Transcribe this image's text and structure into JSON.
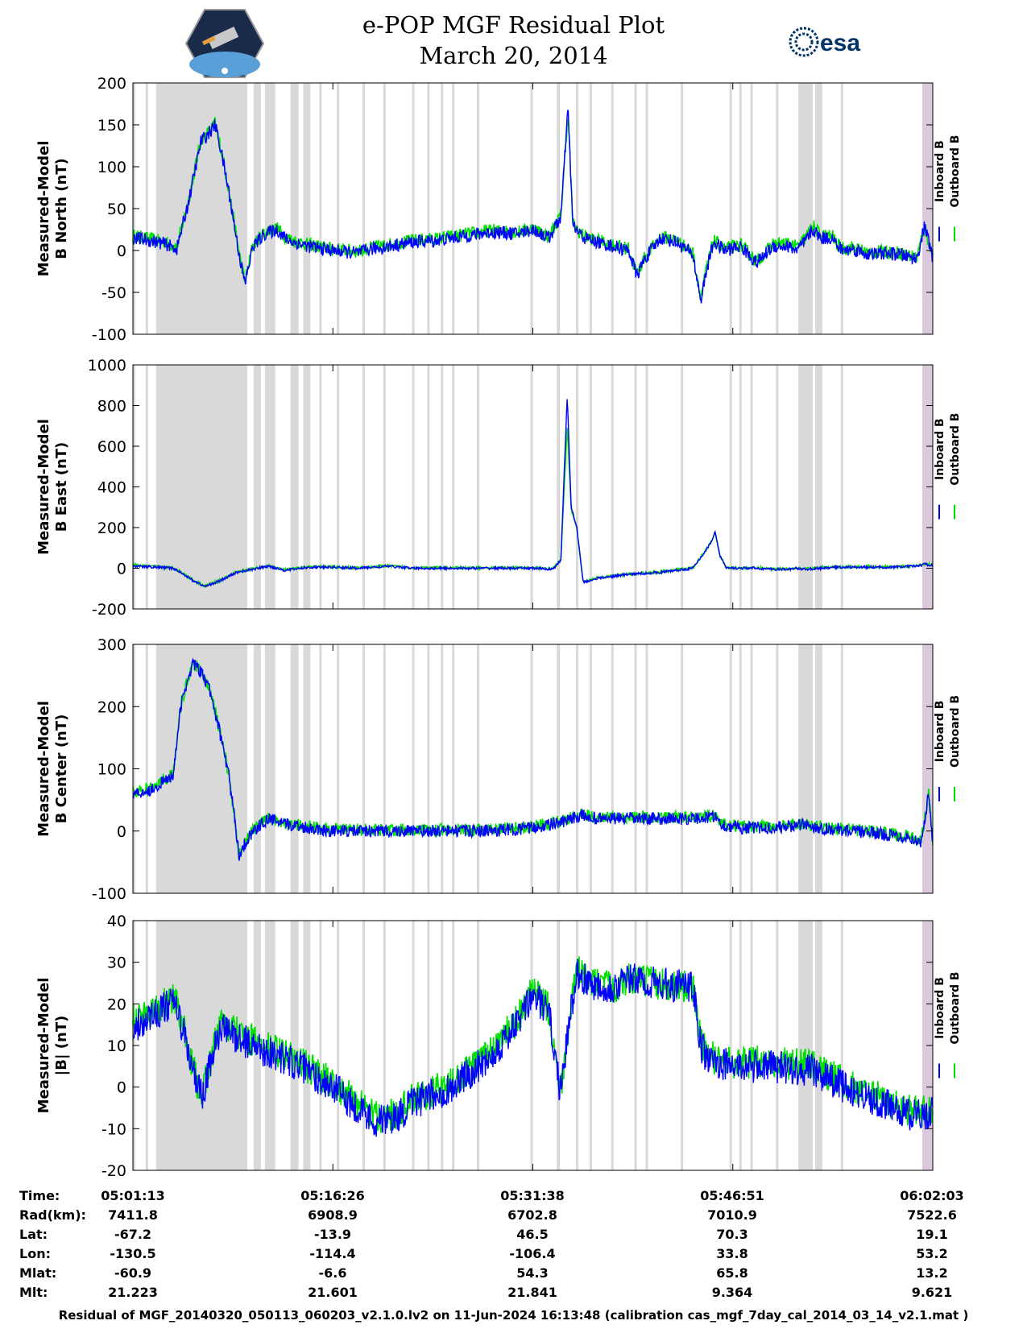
{
  "title": {
    "line1": "e-POP MGF Residual Plot",
    "line2": "March 20, 2014"
  },
  "logos": {
    "left": "Cassiope satellite mission patch",
    "right_text": "esa"
  },
  "colors": {
    "inboard": "#0000ff",
    "outboard": "#00e000",
    "gap_shade": "#d9d9d9",
    "end_shade": "#dcc8dc"
  },
  "chart_data": [
    {
      "type": "line",
      "ylabel_line1": "Measured-Model",
      "ylabel_line2": "B North (nT)",
      "ylim": [
        -100,
        200
      ],
      "yticks": [
        "200",
        "150",
        "100",
        "50",
        "0",
        "-50",
        "-100"
      ],
      "xlim": [
        0,
        100
      ],
      "legend": [
        "Inboard B",
        "Outboard B"
      ],
      "series": [
        {
          "name": "Inboard B",
          "x": [
            0,
            2,
            4,
            5.5,
            7,
            8.5,
            9.5,
            10.3,
            11,
            12,
            13.2,
            14,
            15,
            16.5,
            18,
            19,
            20,
            22,
            25,
            28,
            30,
            32,
            35,
            38,
            40,
            42,
            45,
            48,
            50,
            52,
            53.5,
            54.4,
            55,
            55.8,
            56.5,
            58,
            60,
            62,
            63,
            64,
            66,
            68,
            70,
            71,
            71.8,
            72.6,
            74,
            76,
            78,
            80,
            82,
            83,
            84,
            85,
            86,
            87.5,
            88,
            89,
            90,
            92,
            94,
            96,
            98,
            99,
            100
          ],
          "values": [
            15,
            12,
            8,
            2,
            60,
            130,
            140,
            150,
            120,
            70,
            0,
            -40,
            5,
            20,
            25,
            15,
            10,
            5,
            0,
            -3,
            2,
            5,
            10,
            12,
            15,
            18,
            22,
            20,
            25,
            15,
            40,
            170,
            30,
            20,
            15,
            10,
            5,
            0,
            -30,
            -10,
            15,
            10,
            -5,
            -60,
            -20,
            10,
            0,
            5,
            -15,
            5,
            5,
            0,
            10,
            25,
            15,
            15,
            5,
            0,
            2,
            -5,
            -3,
            -5,
            -10,
            30,
            -10
          ],
          "noise": 8
        },
        {
          "name": "Outboard B",
          "x": [
            0,
            2,
            4,
            5.5,
            7,
            8.5,
            9.5,
            10.3,
            11,
            12,
            13.2,
            14,
            15,
            16.5,
            18,
            19,
            20,
            22,
            25,
            28,
            30,
            32,
            35,
            38,
            40,
            42,
            45,
            48,
            50,
            52,
            53.5,
            54.4,
            55,
            55.8,
            56.5,
            58,
            60,
            62,
            63,
            64,
            66,
            68,
            70,
            71,
            71.8,
            72.6,
            74,
            76,
            78,
            80,
            82,
            83,
            84,
            85,
            86,
            87.5,
            88,
            89,
            90,
            92,
            94,
            96,
            98,
            99,
            100
          ],
          "values": [
            18,
            14,
            10,
            4,
            62,
            132,
            142,
            152,
            122,
            72,
            2,
            -38,
            7,
            22,
            27,
            17,
            12,
            7,
            2,
            -1,
            4,
            7,
            12,
            14,
            17,
            20,
            24,
            22,
            27,
            17,
            42,
            165,
            32,
            22,
            17,
            12,
            7,
            2,
            -28,
            -8,
            17,
            12,
            -3,
            -55,
            -18,
            12,
            2,
            7,
            -13,
            7,
            9,
            4,
            14,
            30,
            18,
            17,
            7,
            2,
            4,
            -3,
            -1,
            -3,
            -8,
            28,
            -8
          ],
          "noise": 8
        }
      ]
    },
    {
      "type": "line",
      "ylabel_line1": "Measured-Model",
      "ylabel_line2": "B East (nT)",
      "ylim": [
        -200,
        1000
      ],
      "yticks": [
        "1000",
        "800",
        "600",
        "400",
        "200",
        "0",
        "-200"
      ],
      "xlim": [
        0,
        100
      ],
      "legend": [
        "Inboard B",
        "Outboard B"
      ],
      "series": [
        {
          "name": "Inboard B",
          "x": [
            0,
            3,
            5,
            6,
            7.5,
            9,
            11,
            13,
            15,
            17,
            19,
            21,
            22,
            25,
            28,
            30,
            32,
            35,
            40,
            45,
            50,
            52.5,
            53.5,
            54.3,
            54.8,
            55.5,
            56.3,
            58,
            62,
            66,
            70,
            71.5,
            72.3,
            72.8,
            73.4,
            74.2,
            76,
            78,
            80,
            82,
            83,
            84,
            86,
            88,
            90,
            92,
            95,
            98,
            99,
            100
          ],
          "values": [
            10,
            5,
            0,
            -20,
            -60,
            -90,
            -60,
            -20,
            -5,
            10,
            -10,
            0,
            5,
            5,
            0,
            5,
            10,
            0,
            0,
            0,
            0,
            -5,
            40,
            850,
            300,
            200,
            -70,
            -50,
            -30,
            -20,
            0,
            80,
            130,
            180,
            60,
            0,
            0,
            0,
            -5,
            -5,
            0,
            -5,
            0,
            5,
            5,
            5,
            5,
            10,
            20,
            15
          ],
          "noise": 6
        },
        {
          "name": "Outboard B",
          "x": [
            0,
            3,
            5,
            6,
            7.5,
            9,
            11,
            13,
            15,
            17,
            19,
            21,
            22,
            25,
            28,
            30,
            32,
            35,
            40,
            45,
            50,
            52.5,
            53.5,
            54.3,
            54.8,
            55.5,
            56.3,
            58,
            62,
            66,
            70,
            71.5,
            72.3,
            72.8,
            73.4,
            74.2,
            76,
            78,
            80,
            82,
            83,
            84,
            86,
            88,
            90,
            92,
            95,
            98,
            99,
            100
          ],
          "values": [
            15,
            8,
            2,
            -18,
            -58,
            -88,
            -58,
            -18,
            -3,
            12,
            -8,
            2,
            7,
            7,
            2,
            7,
            12,
            2,
            2,
            2,
            2,
            -3,
            42,
            700,
            290,
            195,
            -68,
            -48,
            -28,
            -18,
            2,
            82,
            132,
            175,
            62,
            2,
            2,
            2,
            -3,
            -3,
            2,
            -3,
            2,
            7,
            7,
            7,
            7,
            12,
            22,
            17
          ],
          "noise": 6
        }
      ]
    },
    {
      "type": "line",
      "ylabel_line1": "Measured-Model",
      "ylabel_line2": "B Center (nT)",
      "ylim": [
        -100,
        300
      ],
      "yticks": [
        "300",
        "200",
        "100",
        "0",
        "-100"
      ],
      "xlim": [
        0,
        100
      ],
      "legend": [
        "Inboard B",
        "Outboard B"
      ],
      "series": [
        {
          "name": "Inboard B",
          "x": [
            0,
            2,
            4,
            5,
            6,
            7,
            7.5,
            8.5,
            9.5,
            10.5,
            12,
            13.3,
            14,
            15,
            17,
            19,
            20,
            22,
            25,
            28,
            30,
            35,
            40,
            45,
            50,
            52,
            54,
            55,
            56,
            58,
            62,
            66,
            70,
            72,
            72.8,
            73.5,
            76,
            80,
            84,
            86,
            90,
            94,
            97,
            98.5,
            99.5,
            100
          ],
          "values": [
            60,
            65,
            80,
            90,
            200,
            250,
            270,
            255,
            230,
            180,
            90,
            -40,
            -20,
            0,
            20,
            10,
            10,
            5,
            0,
            0,
            0,
            0,
            0,
            0,
            5,
            10,
            15,
            20,
            25,
            20,
            20,
            20,
            20,
            22,
            25,
            10,
            5,
            5,
            10,
            5,
            0,
            -5,
            -10,
            -20,
            60,
            -20
          ],
          "noise": 10
        },
        {
          "name": "Outboard B",
          "x": [
            0,
            2,
            4,
            5,
            6,
            7,
            7.5,
            8.5,
            9.5,
            10.5,
            12,
            13.3,
            14,
            15,
            17,
            19,
            20,
            22,
            25,
            28,
            30,
            35,
            40,
            45,
            50,
            52,
            54,
            55,
            56,
            58,
            62,
            66,
            70,
            72,
            72.8,
            73.5,
            76,
            80,
            84,
            86,
            90,
            94,
            97,
            98.5,
            99.5,
            100
          ],
          "values": [
            62,
            67,
            82,
            92,
            202,
            252,
            272,
            257,
            232,
            182,
            92,
            -38,
            -18,
            2,
            22,
            12,
            12,
            7,
            2,
            2,
            2,
            2,
            2,
            2,
            7,
            12,
            17,
            22,
            27,
            22,
            22,
            22,
            22,
            24,
            27,
            12,
            7,
            7,
            12,
            7,
            2,
            -3,
            -8,
            -18,
            62,
            -18
          ],
          "noise": 10
        }
      ]
    },
    {
      "type": "line",
      "ylabel_line1": "Measured-Model",
      "ylabel_line2": "|B| (nT)",
      "ylim": [
        -20,
        40
      ],
      "yticks": [
        "40",
        "30",
        "20",
        "10",
        "0",
        "-10",
        "-20"
      ],
      "xlim": [
        0,
        100
      ],
      "legend": [
        "Inboard B",
        "Outboard B"
      ],
      "series": [
        {
          "name": "Inboard B",
          "x": [
            0,
            2,
            4,
            5,
            5.5,
            7,
            8,
            8.8,
            9.5,
            10,
            11,
            12,
            15,
            20,
            25,
            30,
            32,
            33,
            35,
            40,
            45,
            48,
            50,
            52,
            53.5,
            54.5,
            55.5,
            57,
            60,
            62,
            65,
            70,
            71,
            72,
            73,
            75,
            80,
            85,
            90,
            95,
            98,
            100
          ],
          "values": [
            14,
            17,
            19,
            20,
            19,
            8,
            0,
            -2,
            4,
            8,
            14,
            13,
            10,
            6,
            0,
            -8,
            -8,
            -7,
            -4,
            0,
            8,
            15,
            22,
            18,
            -2,
            15,
            28,
            25,
            24,
            26,
            25,
            24,
            10,
            6,
            6,
            5,
            5,
            4,
            -1,
            -5,
            -7,
            -6
          ],
          "noise": 4
        },
        {
          "name": "Outboard B",
          "x": [
            0,
            2,
            4,
            5,
            5.5,
            7,
            8,
            8.8,
            9.5,
            10,
            11,
            12,
            15,
            20,
            25,
            30,
            32,
            33,
            35,
            40,
            45,
            48,
            50,
            52,
            53.5,
            54.5,
            55.5,
            57,
            60,
            62,
            65,
            70,
            71,
            72,
            73,
            75,
            80,
            85,
            90,
            95,
            98,
            100
          ],
          "values": [
            16,
            18,
            20,
            21,
            20,
            9,
            1,
            -1,
            5,
            9,
            15,
            14,
            11,
            7,
            1,
            -7,
            -7,
            -6,
            -3,
            1,
            9,
            16,
            23,
            19,
            -1,
            16,
            28,
            25,
            24,
            26,
            25,
            24,
            11,
            7,
            7,
            6,
            6,
            5,
            0,
            -4,
            -6,
            -5
          ],
          "noise": 4
        }
      ]
    }
  ],
  "gaps": [
    {
      "start": 0,
      "end": 0.3
    },
    {
      "start": 1.6,
      "end": 1.9
    },
    {
      "start": 2.9,
      "end": 14.3
    },
    {
      "start": 15.1,
      "end": 16.0
    },
    {
      "start": 16.5,
      "end": 17.8
    },
    {
      "start": 19.7,
      "end": 20.7
    },
    {
      "start": 21.3,
      "end": 22.2
    },
    {
      "start": 23.3,
      "end": 23.6
    },
    {
      "start": 25.5,
      "end": 25.8
    },
    {
      "start": 28.7,
      "end": 29.0
    },
    {
      "start": 31.3,
      "end": 31.6
    },
    {
      "start": 34.9,
      "end": 35.2
    },
    {
      "start": 36.8,
      "end": 37.1
    },
    {
      "start": 38.5,
      "end": 38.8
    },
    {
      "start": 39.9,
      "end": 40.2
    },
    {
      "start": 43.0,
      "end": 43.3
    },
    {
      "start": 49.7,
      "end": 50.0
    },
    {
      "start": 53.0,
      "end": 53.4
    },
    {
      "start": 55.4,
      "end": 55.7
    },
    {
      "start": 57.1,
      "end": 57.4
    },
    {
      "start": 59.8,
      "end": 60.1
    },
    {
      "start": 62.7,
      "end": 63.0
    },
    {
      "start": 64.1,
      "end": 64.4
    },
    {
      "start": 68.5,
      "end": 68.8
    },
    {
      "start": 74.6,
      "end": 74.9
    },
    {
      "start": 75.8,
      "end": 76.1
    },
    {
      "start": 77.2,
      "end": 77.5
    },
    {
      "start": 80.4,
      "end": 80.7
    },
    {
      "start": 83.2,
      "end": 85.0
    },
    {
      "start": 85.3,
      "end": 86.2
    },
    {
      "start": 88.5,
      "end": 88.8
    }
  ],
  "end_shade": {
    "start": 98.7,
    "end": 100
  },
  "x_ticks": [
    0,
    25,
    50,
    75,
    100
  ],
  "info_table": {
    "keys": [
      "Time:",
      "Rad(km):",
      "Lat:",
      "Lon:",
      "Mlat:",
      "Mlt:"
    ],
    "columns": [
      [
        "05:01:13",
        "7411.8",
        "-67.2",
        "-130.5",
        "-60.9",
        "21.223"
      ],
      [
        "05:16:26",
        "6908.9",
        "-13.9",
        "-114.4",
        "-6.6",
        "21.601"
      ],
      [
        "05:31:38",
        "6702.8",
        "46.5",
        "-106.4",
        "54.3",
        "21.841"
      ],
      [
        "05:46:51",
        "7010.9",
        "70.3",
        "33.8",
        "65.8",
        "9.364"
      ],
      [
        "06:02:03",
        "7522.6",
        "19.1",
        "53.2",
        "13.2",
        "9.621"
      ]
    ]
  },
  "footer": "Residual of MGF_20140320_050113_060203_v2.1.0.lv2 on 11-Jun-2024 16:13:48 (calibration cas_mgf_7day_cal_2014_03_14_v2.1.mat )"
}
